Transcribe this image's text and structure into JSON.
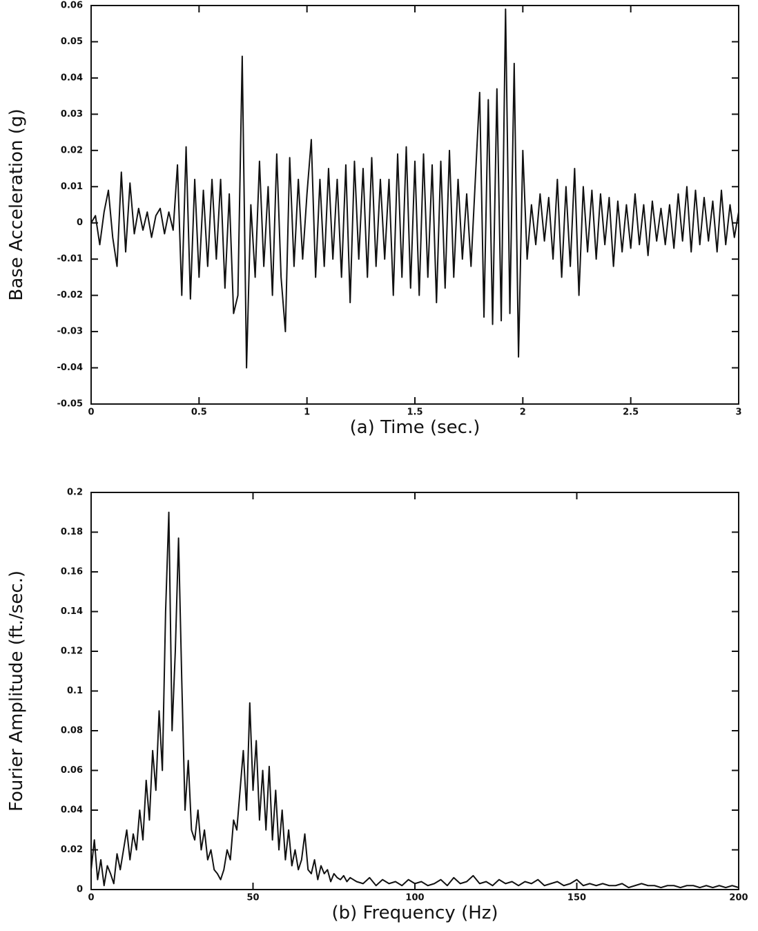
{
  "chart_data": [
    {
      "type": "line",
      "xlabel": "(a) Time (sec.)",
      "ylabel": "Base Acceleration (g)",
      "color": "#111111",
      "xlim": [
        0,
        3
      ],
      "ylim": [
        -0.05,
        0.06
      ],
      "xticks": [
        0,
        0.5,
        1,
        1.5,
        2,
        2.5,
        3
      ],
      "yticks": [
        -0.05,
        -0.04,
        -0.03,
        -0.02,
        -0.01,
        0,
        0.01,
        0.02,
        0.03,
        0.04,
        0.05,
        0.06
      ],
      "x": [
        0,
        0.02,
        0.04,
        0.06,
        0.08,
        0.1,
        0.12,
        0.14,
        0.16,
        0.18,
        0.2,
        0.22,
        0.24,
        0.26,
        0.28,
        0.3,
        0.32,
        0.34,
        0.36,
        0.38,
        0.4,
        0.42,
        0.44,
        0.46,
        0.48,
        0.5,
        0.52,
        0.54,
        0.56,
        0.58,
        0.6,
        0.62,
        0.64,
        0.66,
        0.68,
        0.7,
        0.72,
        0.74,
        0.76,
        0.78,
        0.8,
        0.82,
        0.84,
        0.86,
        0.88,
        0.9,
        0.92,
        0.94,
        0.96,
        0.98,
        1,
        1.02,
        1.04,
        1.06,
        1.08,
        1.1,
        1.12,
        1.14,
        1.16,
        1.18,
        1.2,
        1.22,
        1.24,
        1.26,
        1.28,
        1.3,
        1.32,
        1.34,
        1.36,
        1.38,
        1.4,
        1.42,
        1.44,
        1.46,
        1.48,
        1.5,
        1.52,
        1.54,
        1.56,
        1.58,
        1.6,
        1.62,
        1.64,
        1.66,
        1.68,
        1.7,
        1.72,
        1.74,
        1.76,
        1.78,
        1.8,
        1.82,
        1.84,
        1.86,
        1.88,
        1.9,
        1.92,
        1.94,
        1.96,
        1.98,
        2,
        2.02,
        2.04,
        2.06,
        2.08,
        2.1,
        2.12,
        2.14,
        2.16,
        2.18,
        2.2,
        2.22,
        2.24,
        2.26,
        2.28,
        2.3,
        2.32,
        2.34,
        2.36,
        2.38,
        2.4,
        2.42,
        2.44,
        2.46,
        2.48,
        2.5,
        2.52,
        2.54,
        2.56,
        2.58,
        2.6,
        2.62,
        2.64,
        2.66,
        2.68,
        2.7,
        2.72,
        2.74,
        2.76,
        2.78,
        2.8,
        2.82,
        2.84,
        2.86,
        2.88,
        2.9,
        2.92,
        2.94,
        2.96,
        2.98,
        3
      ],
      "values": [
        0,
        0.002,
        -0.006,
        0.003,
        0.009,
        -0.004,
        -0.012,
        0.014,
        -0.008,
        0.011,
        -0.003,
        0.004,
        -0.002,
        0.003,
        -0.004,
        0.002,
        0.004,
        -0.003,
        0.003,
        -0.002,
        0.016,
        -0.02,
        0.021,
        -0.021,
        0.012,
        -0.015,
        0.009,
        -0.012,
        0.012,
        -0.01,
        0.012,
        -0.018,
        0.008,
        -0.025,
        -0.02,
        0.046,
        -0.04,
        0.005,
        -0.015,
        0.017,
        -0.012,
        0.01,
        -0.02,
        0.019,
        -0.015,
        -0.03,
        0.018,
        -0.012,
        0.012,
        -0.01,
        0.008,
        0.023,
        -0.015,
        0.012,
        -0.012,
        0.015,
        -0.01,
        0.012,
        -0.015,
        0.016,
        -0.022,
        0.017,
        -0.01,
        0.015,
        -0.015,
        0.018,
        -0.012,
        0.012,
        -0.01,
        0.012,
        -0.02,
        0.019,
        -0.015,
        0.021,
        -0.018,
        0.017,
        -0.02,
        0.019,
        -0.015,
        0.016,
        -0.022,
        0.017,
        -0.018,
        0.02,
        -0.015,
        0.012,
        -0.01,
        0.008,
        -0.012,
        0.012,
        0.036,
        -0.026,
        0.034,
        -0.028,
        0.037,
        -0.027,
        0.059,
        -0.025,
        0.044,
        -0.037,
        0.02,
        -0.01,
        0.005,
        -0.006,
        0.008,
        -0.005,
        0.007,
        -0.01,
        0.012,
        -0.015,
        0.01,
        -0.012,
        0.015,
        -0.02,
        0.01,
        -0.008,
        0.009,
        -0.01,
        0.008,
        -0.006,
        0.007,
        -0.012,
        0.006,
        -0.008,
        0.005,
        -0.007,
        0.008,
        -0.006,
        0.005,
        -0.009,
        0.006,
        -0.005,
        0.004,
        -0.006,
        0.005,
        -0.007,
        0.008,
        -0.005,
        0.01,
        -0.008,
        0.009,
        -0.006,
        0.007,
        -0.005,
        0.006,
        -0.008,
        0.009,
        -0.006,
        0.005,
        -0.004,
        0.003
      ]
    },
    {
      "type": "line",
      "xlabel": "(b) Frequency (Hz)",
      "ylabel": "Fourier Amplitude (ft./sec.)",
      "color": "#111111",
      "xlim": [
        0,
        200
      ],
      "ylim": [
        0,
        0.2
      ],
      "xticks": [
        0,
        50,
        100,
        150,
        200
      ],
      "yticks": [
        0,
        0.02,
        0.04,
        0.06,
        0.08,
        0.1,
        0.12,
        0.14,
        0.16,
        0.18,
        0.2
      ],
      "x": [
        0,
        1,
        2,
        3,
        4,
        5,
        6,
        7,
        8,
        9,
        10,
        11,
        12,
        13,
        14,
        15,
        16,
        17,
        18,
        19,
        20,
        21,
        22,
        23,
        24,
        25,
        26,
        27,
        28,
        29,
        30,
        31,
        32,
        33,
        34,
        35,
        36,
        37,
        38,
        39,
        40,
        41,
        42,
        43,
        44,
        45,
        46,
        47,
        48,
        49,
        50,
        51,
        52,
        53,
        54,
        55,
        56,
        57,
        58,
        59,
        60,
        61,
        62,
        63,
        64,
        65,
        66,
        67,
        68,
        69,
        70,
        71,
        72,
        73,
        74,
        75,
        76,
        77,
        78,
        79,
        80,
        82,
        84,
        86,
        88,
        90,
        92,
        94,
        96,
        98,
        100,
        102,
        104,
        106,
        108,
        110,
        112,
        114,
        116,
        118,
        120,
        122,
        124,
        126,
        128,
        130,
        132,
        134,
        136,
        138,
        140,
        142,
        144,
        146,
        148,
        150,
        152,
        154,
        156,
        158,
        160,
        162,
        164,
        166,
        168,
        170,
        172,
        174,
        176,
        178,
        180,
        182,
        184,
        186,
        188,
        190,
        192,
        194,
        196,
        198,
        200
      ],
      "values": [
        0.01,
        0.025,
        0.005,
        0.015,
        0.002,
        0.012,
        0.008,
        0.003,
        0.018,
        0.01,
        0.02,
        0.03,
        0.015,
        0.028,
        0.02,
        0.04,
        0.025,
        0.055,
        0.035,
        0.07,
        0.05,
        0.09,
        0.06,
        0.14,
        0.19,
        0.08,
        0.12,
        0.177,
        0.105,
        0.04,
        0.065,
        0.03,
        0.025,
        0.04,
        0.02,
        0.03,
        0.015,
        0.02,
        0.01,
        0.008,
        0.005,
        0.01,
        0.02,
        0.015,
        0.035,
        0.03,
        0.05,
        0.07,
        0.04,
        0.094,
        0.05,
        0.075,
        0.035,
        0.06,
        0.03,
        0.062,
        0.025,
        0.05,
        0.02,
        0.04,
        0.015,
        0.03,
        0.012,
        0.02,
        0.01,
        0.015,
        0.028,
        0.01,
        0.008,
        0.015,
        0.005,
        0.012,
        0.008,
        0.01,
        0.004,
        0.008,
        0.006,
        0.005,
        0.007,
        0.004,
        0.006,
        0.004,
        0.003,
        0.006,
        0.002,
        0.005,
        0.003,
        0.004,
        0.002,
        0.005,
        0.003,
        0.004,
        0.002,
        0.003,
        0.005,
        0.002,
        0.006,
        0.003,
        0.004,
        0.007,
        0.003,
        0.004,
        0.002,
        0.005,
        0.003,
        0.004,
        0.002,
        0.004,
        0.003,
        0.005,
        0.002,
        0.003,
        0.004,
        0.002,
        0.003,
        0.005,
        0.002,
        0.003,
        0.002,
        0.003,
        0.002,
        0.002,
        0.003,
        0.001,
        0.002,
        0.003,
        0.002,
        0.002,
        0.001,
        0.002,
        0.002,
        0.001,
        0.002,
        0.002,
        0.001,
        0.002,
        0.001,
        0.002,
        0.001,
        0.002,
        0.001
      ]
    }
  ]
}
